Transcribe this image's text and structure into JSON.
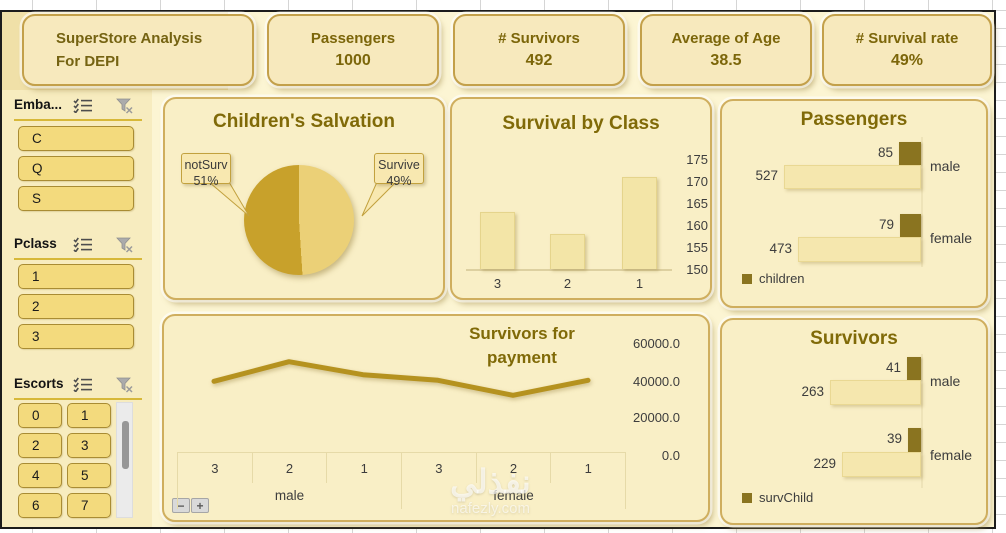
{
  "brand": {
    "line1": "SuperStore Analysis",
    "line2": "For DEPI"
  },
  "kpis": [
    {
      "label": "Passengers",
      "value": "1000"
    },
    {
      "label": "# Survivors",
      "value": "492"
    },
    {
      "label": "Average of Age",
      "value": "38.5"
    },
    {
      "label": "# Survival rate",
      "value": "49%"
    }
  ],
  "slicers": [
    {
      "title": "Emba...",
      "items": [
        "C",
        "Q",
        "S"
      ]
    },
    {
      "title": "Pclass",
      "items": [
        "1",
        "2",
        "3"
      ]
    },
    {
      "title": "Escorts",
      "items": [
        "0",
        "1",
        "2",
        "3",
        "4",
        "5",
        "6",
        "7"
      ],
      "has_scrollbar": true
    }
  ],
  "icons": {
    "multi_select": "checklist-icon",
    "clear_filter": "funnel-x-icon"
  },
  "chart_data": [
    {
      "type": "pie",
      "title": "Children's Salvation",
      "slices": [
        {
          "label": "notSurv",
          "value": 51,
          "pct_label": "51%",
          "color": "#c8a12b"
        },
        {
          "label": "Survive",
          "value": 49,
          "pct_label": "49%",
          "color": "#ebd077"
        }
      ]
    },
    {
      "type": "bar",
      "title": "Survival by Class",
      "categories": [
        "3",
        "2",
        "1"
      ],
      "values": [
        163,
        158,
        171
      ],
      "ylim": [
        150,
        175
      ],
      "y_ticks": [
        "175",
        "170",
        "165",
        "160",
        "155",
        "150"
      ],
      "axis_side": "right"
    },
    {
      "type": "bar",
      "title": "Passengers",
      "orientation": "horizontal-right",
      "categories": [
        "male",
        "female"
      ],
      "series": [
        {
          "name": "children",
          "values": [
            85,
            79
          ]
        },
        {
          "name": "",
          "values": [
            527,
            473
          ]
        }
      ],
      "legend": "children"
    },
    {
      "type": "line",
      "title": "Survivors for payment",
      "title_line1": "Survivors for",
      "title_line2": "payment",
      "categories": [
        "3",
        "2",
        "1",
        "3",
        "2",
        "1"
      ],
      "group_labels": [
        "male",
        "female"
      ],
      "values": [
        39500,
        50000,
        43000,
        40000,
        32000,
        40000
      ],
      "ylim": [
        0,
        60000
      ],
      "y_ticks": [
        "60000.0",
        "40000.0",
        "20000.0",
        "0.0"
      ]
    },
    {
      "type": "bar",
      "title": "Survivors",
      "orientation": "horizontal-right",
      "categories": [
        "male",
        "female"
      ],
      "series": [
        {
          "name": "survChild",
          "values": [
            41,
            39
          ]
        },
        {
          "name": "",
          "values": [
            263,
            229
          ]
        }
      ],
      "legend": "survChild"
    }
  ],
  "zoom_controls": {
    "minus": "−",
    "plus": "+"
  },
  "watermark": {
    "line1": "نفذلي",
    "line2": "nafezly.com"
  },
  "colors": {
    "kpi_text": "#7c660a",
    "chart_title": "#806a08",
    "pie_dark": "#c8a12b",
    "pie_light": "#ebd077",
    "series_dark": "#8a7420",
    "bar_light": "#f3e5a7",
    "line": "#b5921f",
    "card_bg": "#f8edc4",
    "card_border": "#c3a04a",
    "slicer_button_bg": "#f3da7d",
    "slicer_underline": "#d7b839"
  }
}
